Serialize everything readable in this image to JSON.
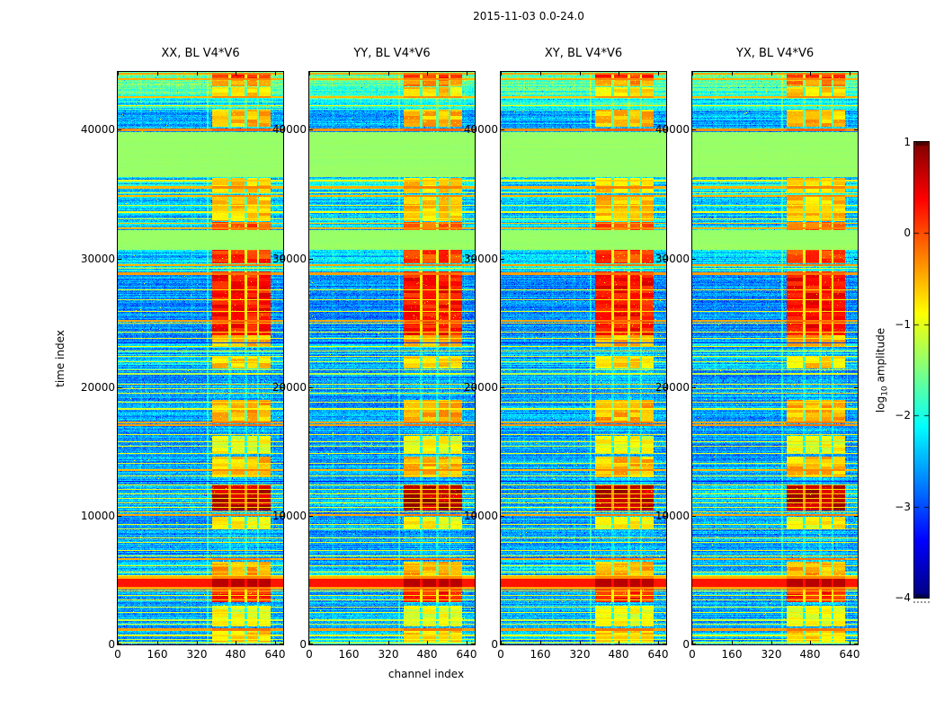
{
  "figure": {
    "title": "2015-11-03 0.0-24.0"
  },
  "axes": {
    "xlabel": "channel index",
    "ylabel": "time index"
  },
  "colorbar": {
    "label_pre": "log",
    "label_sub": "10",
    "label_post": " amplitude",
    "tick_labels": [
      "1",
      "0",
      "−1",
      "−2",
      "−3",
      "−4"
    ],
    "tick_values": [
      1,
      0,
      -1,
      -2,
      -3,
      -4
    ],
    "colormap": "jet",
    "vmin": -4,
    "vmax": 1
  },
  "chart_data": {
    "type": "heatmap",
    "title": "2015-11-03 0.0-24.0",
    "xlabel": "channel index",
    "ylabel": "time index",
    "colorbar_label": "log10 amplitude",
    "panels": [
      {
        "title": "XX, BL V4*V6"
      },
      {
        "title": "YY, BL V4*V6"
      },
      {
        "title": "XY, BL V4*V6"
      },
      {
        "title": "YX, BL V4*V6"
      }
    ],
    "x_range": [
      0,
      673
    ],
    "y_range": [
      0,
      44500
    ],
    "xticks": [
      0,
      160,
      320,
      480,
      640
    ],
    "xtick_labels": [
      "0",
      "160",
      "320",
      "480",
      "640"
    ],
    "yticks": [
      0,
      10000,
      20000,
      30000,
      40000
    ],
    "ytick_labels": [
      "0",
      "10000",
      "20000",
      "30000",
      "40000"
    ],
    "color_scale": {
      "colormap": "jet",
      "vmin": -4,
      "vmax": 1,
      "unit": "log10 amplitude"
    },
    "features": {
      "green_level": -1.38,
      "green_bands": [
        [
          30650,
          32200
        ],
        [
          36300,
          39800
        ]
      ],
      "red_band": [
        4450,
        5080,
        0.28,
        0.72
      ],
      "base_regions": [
        [
          0,
          1200,
          -2.45,
          0.45
        ],
        [
          1200,
          4450,
          -2.55,
          0.35
        ],
        [
          5080,
          6500,
          -2.4,
          0.45
        ],
        [
          6500,
          10380,
          -2.6,
          0.35
        ],
        [
          10380,
          12420,
          -2.45,
          0.35
        ],
        [
          12420,
          14700,
          -2.55,
          0.35
        ],
        [
          14700,
          17000,
          -2.62,
          0.3
        ],
        [
          17000,
          19000,
          -2.55,
          0.35
        ],
        [
          19000,
          21400,
          -2.62,
          0.3
        ],
        [
          21400,
          23400,
          -2.4,
          0.5
        ],
        [
          23400,
          24050,
          -2.6,
          0.35
        ],
        [
          24050,
          29000,
          -2.68,
          0.3
        ],
        [
          29000,
          29590,
          -2.2,
          0.5
        ],
        [
          29590,
          30650,
          -2.35,
          0.4
        ],
        [
          32200,
          32900,
          -2.3,
          0.45
        ],
        [
          32900,
          34900,
          -2.38,
          0.4
        ],
        [
          34900,
          36300,
          -2.25,
          0.5
        ],
        [
          39800,
          41500,
          -2.5,
          0.4
        ],
        [
          41500,
          42400,
          -2.15,
          0.5
        ],
        [
          42400,
          43350,
          -1.8,
          0.4
        ],
        [
          43350,
          44500,
          -1.6,
          0.35
        ]
      ],
      "hlines": [
        [
          44350,
          -0.45,
          150
        ],
        [
          43950,
          -0.5,
          150
        ],
        [
          42550,
          -0.55,
          150
        ],
        [
          41900,
          -0.95,
          80
        ],
        [
          40020,
          -0.35,
          220
        ],
        [
          39600,
          -3.3,
          80
        ],
        [
          39450,
          -1.0,
          80
        ],
        [
          37980,
          -0.3,
          220
        ],
        [
          36050,
          -0.85,
          80
        ],
        [
          35520,
          -0.5,
          150
        ],
        [
          35120,
          -0.9,
          80
        ],
        [
          34880,
          -0.5,
          150
        ],
        [
          34150,
          -1.0,
          80
        ],
        [
          33600,
          -0.95,
          80
        ],
        [
          33100,
          -1.05,
          80
        ],
        [
          32700,
          -0.6,
          80
        ],
        [
          32320,
          -0.5,
          150
        ],
        [
          32160,
          -0.45,
          150
        ],
        [
          30690,
          -0.55,
          100
        ],
        [
          29470,
          -0.45,
          150
        ],
        [
          29250,
          -1.1,
          80
        ],
        [
          28830,
          -0.4,
          200
        ],
        [
          27550,
          -0.95,
          80
        ],
        [
          26800,
          -1.05,
          80
        ],
        [
          25900,
          -1.0,
          80
        ],
        [
          25150,
          -0.45,
          150
        ],
        [
          24950,
          -0.7,
          80
        ],
        [
          24300,
          -0.95,
          80
        ],
        [
          23800,
          -1.0,
          80
        ],
        [
          23450,
          -3.3,
          80
        ],
        [
          23150,
          -0.85,
          100
        ],
        [
          22800,
          -1.0,
          80
        ],
        [
          22400,
          -0.95,
          80
        ],
        [
          21950,
          -1.0,
          80
        ],
        [
          21350,
          -1.25,
          120
        ],
        [
          21050,
          -1.25,
          120
        ],
        [
          20250,
          -0.9,
          80
        ],
        [
          19900,
          -1.05,
          80
        ],
        [
          19550,
          -0.95,
          80
        ],
        [
          18850,
          -1.0,
          80
        ],
        [
          18300,
          -1.05,
          80
        ],
        [
          17250,
          -0.45,
          130
        ],
        [
          17020,
          -0.4,
          130
        ],
        [
          16300,
          -0.95,
          80
        ],
        [
          15750,
          -0.9,
          80
        ],
        [
          15400,
          -1.05,
          80
        ],
        [
          14850,
          -0.95,
          80
        ],
        [
          14100,
          -1.0,
          80
        ],
        [
          13560,
          -0.5,
          150
        ],
        [
          13100,
          -1.0,
          80
        ],
        [
          12650,
          -3.3,
          80
        ],
        [
          12400,
          -0.9,
          80
        ],
        [
          12050,
          -0.95,
          80
        ],
        [
          11700,
          -0.85,
          80
        ],
        [
          11350,
          -0.95,
          80
        ],
        [
          11000,
          -0.9,
          80
        ],
        [
          10650,
          -0.95,
          80
        ],
        [
          10300,
          -0.9,
          80
        ],
        [
          10040,
          -0.45,
          150
        ],
        [
          9350,
          -0.95,
          80
        ],
        [
          8950,
          -1.05,
          80
        ],
        [
          8300,
          -0.95,
          80
        ],
        [
          7900,
          -1.05,
          80
        ],
        [
          7300,
          -0.95,
          80
        ],
        [
          6900,
          -1.0,
          80
        ],
        [
          6650,
          -0.45,
          150
        ],
        [
          6100,
          -0.9,
          80
        ],
        [
          5650,
          -0.8,
          80
        ],
        [
          5350,
          -0.9,
          80
        ],
        [
          5180,
          -0.5,
          200
        ],
        [
          4350,
          -0.45,
          200
        ],
        [
          4150,
          -0.85,
          80
        ],
        [
          3800,
          -1.0,
          80
        ],
        [
          3450,
          -0.95,
          80
        ],
        [
          2900,
          -1.05,
          80
        ],
        [
          2500,
          -1.0,
          80
        ],
        [
          1900,
          -1.15,
          150
        ],
        [
          1550,
          -1.0,
          80
        ],
        [
          1150,
          -0.4,
          220
        ],
        [
          700,
          -0.95,
          80
        ],
        [
          400,
          -1.1,
          80
        ],
        [
          150,
          -1.3,
          100
        ]
      ],
      "band_subcolumns": [
        [
          385,
          450
        ],
        [
          462,
          515
        ],
        [
          526,
          568
        ],
        [
          576,
          622
        ]
      ],
      "band_clusters": [
        [
          43900,
          44450,
          0.15
        ],
        [
          43350,
          43900,
          -0.35
        ],
        [
          42450,
          43300,
          -0.7
        ],
        [
          40250,
          41550,
          -0.55
        ],
        [
          35100,
          36280,
          -0.7
        ],
        [
          32900,
          34850,
          -0.6
        ],
        [
          32170,
          32850,
          -0.05
        ],
        [
          29600,
          30640,
          0.1
        ],
        [
          24050,
          28990,
          0.3
        ],
        [
          23150,
          24040,
          -0.5
        ],
        [
          21450,
          22400,
          -0.7
        ],
        [
          17350,
          19000,
          -0.5
        ],
        [
          14800,
          16200,
          -0.95
        ],
        [
          13000,
          14600,
          -0.55
        ],
        [
          10380,
          12420,
          0.72
        ],
        [
          9000,
          9950,
          -0.85
        ],
        [
          5400,
          6450,
          -0.5
        ],
        [
          3250,
          4250,
          0.25
        ],
        [
          1400,
          3000,
          -0.95
        ],
        [
          60,
          1150,
          -0.65
        ]
      ],
      "vlines": [
        [
          366,
          0.5
        ],
        [
          95,
          0.15
        ],
        [
          210,
          0.12
        ],
        [
          300,
          0.12
        ],
        [
          632,
          0.22
        ]
      ]
    }
  }
}
